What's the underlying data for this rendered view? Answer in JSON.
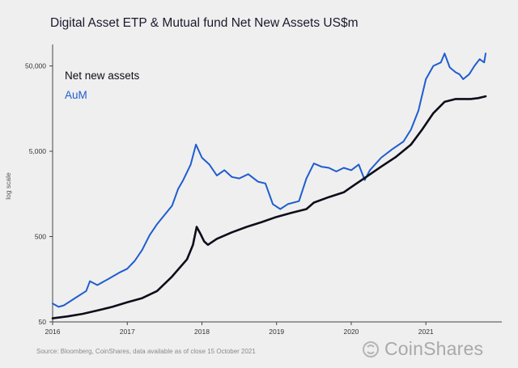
{
  "chart_data": {
    "type": "line",
    "title": "Digital Asset ETP & Mutual fund Net New Assets US$m",
    "ylabel": "log scale",
    "xlabel": "",
    "y_scale": "log",
    "ylim": [
      50,
      80000
    ],
    "y_ticks": [
      50,
      500,
      5000,
      50000
    ],
    "y_tick_labels": [
      "50",
      "500",
      "5,000",
      "50,000"
    ],
    "x_tick_labels": [
      "2016",
      "2017",
      "2018",
      "2019",
      "2020",
      "2021"
    ],
    "x_range": [
      2016.0,
      2021.8
    ],
    "legend_position": "top-left",
    "grid": false,
    "series": [
      {
        "name": "Net new assets",
        "color": "#0d0d1a",
        "points": [
          [
            2016.0,
            55
          ],
          [
            2016.2,
            58
          ],
          [
            2016.4,
            62
          ],
          [
            2016.6,
            68
          ],
          [
            2016.8,
            75
          ],
          [
            2017.0,
            85
          ],
          [
            2017.2,
            95
          ],
          [
            2017.4,
            115
          ],
          [
            2017.6,
            170
          ],
          [
            2017.8,
            270
          ],
          [
            2017.88,
            400
          ],
          [
            2017.93,
            650
          ],
          [
            2017.98,
            540
          ],
          [
            2018.03,
            440
          ],
          [
            2018.08,
            400
          ],
          [
            2018.2,
            470
          ],
          [
            2018.4,
            560
          ],
          [
            2018.6,
            650
          ],
          [
            2018.8,
            740
          ],
          [
            2019.0,
            850
          ],
          [
            2019.2,
            950
          ],
          [
            2019.4,
            1050
          ],
          [
            2019.5,
            1250
          ],
          [
            2019.7,
            1450
          ],
          [
            2019.9,
            1650
          ],
          [
            2020.0,
            1900
          ],
          [
            2020.2,
            2500
          ],
          [
            2020.4,
            3300
          ],
          [
            2020.6,
            4300
          ],
          [
            2020.8,
            6000
          ],
          [
            2020.95,
            9000
          ],
          [
            2021.1,
            14000
          ],
          [
            2021.25,
            19000
          ],
          [
            2021.4,
            20500
          ],
          [
            2021.6,
            20500
          ],
          [
            2021.7,
            21000
          ],
          [
            2021.8,
            22000
          ]
        ]
      },
      {
        "name": "AuM",
        "color": "#1f5dcf",
        "points": [
          [
            2016.0,
            82
          ],
          [
            2016.08,
            75
          ],
          [
            2016.15,
            78
          ],
          [
            2016.3,
            95
          ],
          [
            2016.45,
            115
          ],
          [
            2016.5,
            150
          ],
          [
            2016.6,
            135
          ],
          [
            2016.75,
            160
          ],
          [
            2016.9,
            190
          ],
          [
            2017.0,
            210
          ],
          [
            2017.1,
            260
          ],
          [
            2017.2,
            350
          ],
          [
            2017.3,
            520
          ],
          [
            2017.4,
            700
          ],
          [
            2017.5,
            900
          ],
          [
            2017.6,
            1150
          ],
          [
            2017.68,
            1800
          ],
          [
            2017.75,
            2300
          ],
          [
            2017.85,
            3500
          ],
          [
            2017.92,
            6000
          ],
          [
            2018.0,
            4200
          ],
          [
            2018.1,
            3500
          ],
          [
            2018.2,
            2600
          ],
          [
            2018.3,
            3000
          ],
          [
            2018.4,
            2500
          ],
          [
            2018.5,
            2400
          ],
          [
            2018.62,
            2700
          ],
          [
            2018.75,
            2200
          ],
          [
            2018.85,
            2100
          ],
          [
            2018.95,
            1200
          ],
          [
            2019.05,
            1050
          ],
          [
            2019.15,
            1200
          ],
          [
            2019.3,
            1300
          ],
          [
            2019.4,
            2400
          ],
          [
            2019.5,
            3600
          ],
          [
            2019.6,
            3300
          ],
          [
            2019.7,
            3200
          ],
          [
            2019.8,
            2900
          ],
          [
            2019.9,
            3200
          ],
          [
            2020.0,
            3000
          ],
          [
            2020.1,
            3500
          ],
          [
            2020.18,
            2300
          ],
          [
            2020.25,
            3000
          ],
          [
            2020.4,
            4200
          ],
          [
            2020.55,
            5300
          ],
          [
            2020.7,
            6500
          ],
          [
            2020.8,
            9000
          ],
          [
            2020.9,
            15000
          ],
          [
            2021.0,
            35000
          ],
          [
            2021.1,
            50000
          ],
          [
            2021.2,
            55000
          ],
          [
            2021.25,
            70000
          ],
          [
            2021.32,
            48000
          ],
          [
            2021.4,
            42000
          ],
          [
            2021.45,
            40000
          ],
          [
            2021.5,
            35000
          ],
          [
            2021.58,
            40000
          ],
          [
            2021.65,
            50000
          ],
          [
            2021.72,
            60000
          ],
          [
            2021.78,
            55000
          ],
          [
            2021.8,
            70000
          ]
        ]
      }
    ]
  },
  "source_note": "Source: Bloomberg, CoinShares, data available as of close 15 October 2021",
  "brand": {
    "name": "CoinShares",
    "icon": "coinshares-logo-icon"
  }
}
